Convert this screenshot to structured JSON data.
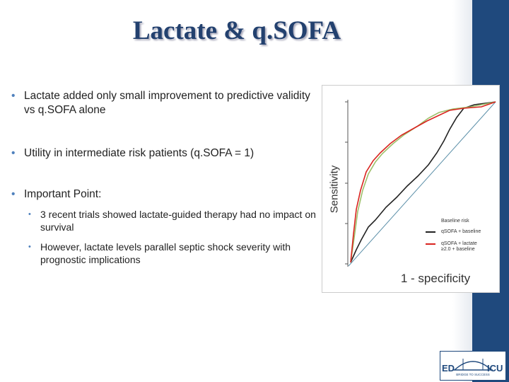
{
  "title": "Lactate & q.SOFA",
  "bullets": [
    {
      "text": "Lactate added only small improvement to predictive validity vs q.SOFA alone"
    },
    {
      "text": "Utility in intermediate risk patients (q.SOFA = 1)"
    },
    {
      "text": "Important Point:",
      "sub": [
        "3 recent trials showed lactate-guided therapy had no impact on survival",
        "However, lactate levels parallel septic shock severity with prognostic implications"
      ]
    }
  ],
  "figure": {
    "y_label": "Sensitivity",
    "x_label": "1 - specificity",
    "legend": [
      "Baseline risk",
      "qSOFA + baseline",
      "qSOFA + lactate ≥2.0 + baseline"
    ]
  },
  "logo": {
    "left": "ED",
    "middle": "BRIDGE TO SUCCESS",
    "right": "ICU"
  }
}
